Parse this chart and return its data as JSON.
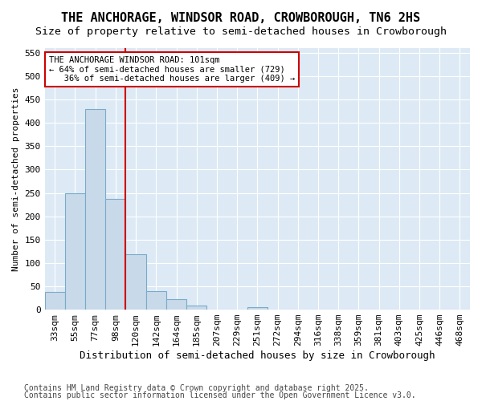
{
  "title": "THE ANCHORAGE, WINDSOR ROAD, CROWBOROUGH, TN6 2HS",
  "subtitle": "Size of property relative to semi-detached houses in Crowborough",
  "xlabel": "Distribution of semi-detached houses by size in Crowborough",
  "ylabel": "Number of semi-detached properties",
  "categories": [
    "33sqm",
    "55sqm",
    "77sqm",
    "98sqm",
    "120sqm",
    "142sqm",
    "164sqm",
    "185sqm",
    "207sqm",
    "229sqm",
    "251sqm",
    "272sqm",
    "294sqm",
    "316sqm",
    "338sqm",
    "359sqm",
    "381sqm",
    "403sqm",
    "425sqm",
    "446sqm",
    "468sqm"
  ],
  "values": [
    38,
    250,
    430,
    237,
    118,
    40,
    23,
    8,
    0,
    0,
    5,
    0,
    0,
    1,
    0,
    0,
    1,
    0,
    0,
    0,
    1
  ],
  "bar_color": "#c8daea",
  "bar_edge_color": "#7aaac8",
  "vline_color": "#cc0000",
  "vline_x_index": 3,
  "annotation_text": "THE ANCHORAGE WINDSOR ROAD: 101sqm\n← 64% of semi-detached houses are smaller (729)\n   36% of semi-detached houses are larger (409) →",
  "annotation_box_facecolor": "#ffffff",
  "annotation_box_edgecolor": "#cc0000",
  "ylim": [
    0,
    560
  ],
  "yticks": [
    0,
    50,
    100,
    150,
    200,
    250,
    300,
    350,
    400,
    450,
    500,
    550
  ],
  "fig_facecolor": "#ffffff",
  "plot_facecolor": "#ddeaf5",
  "grid_color": "#ffffff",
  "footer_line1": "Contains HM Land Registry data © Crown copyright and database right 2025.",
  "footer_line2": "Contains public sector information licensed under the Open Government Licence v3.0.",
  "title_fontsize": 11,
  "subtitle_fontsize": 9.5,
  "tick_fontsize": 8,
  "ylabel_fontsize": 8,
  "xlabel_fontsize": 9,
  "footer_fontsize": 7
}
